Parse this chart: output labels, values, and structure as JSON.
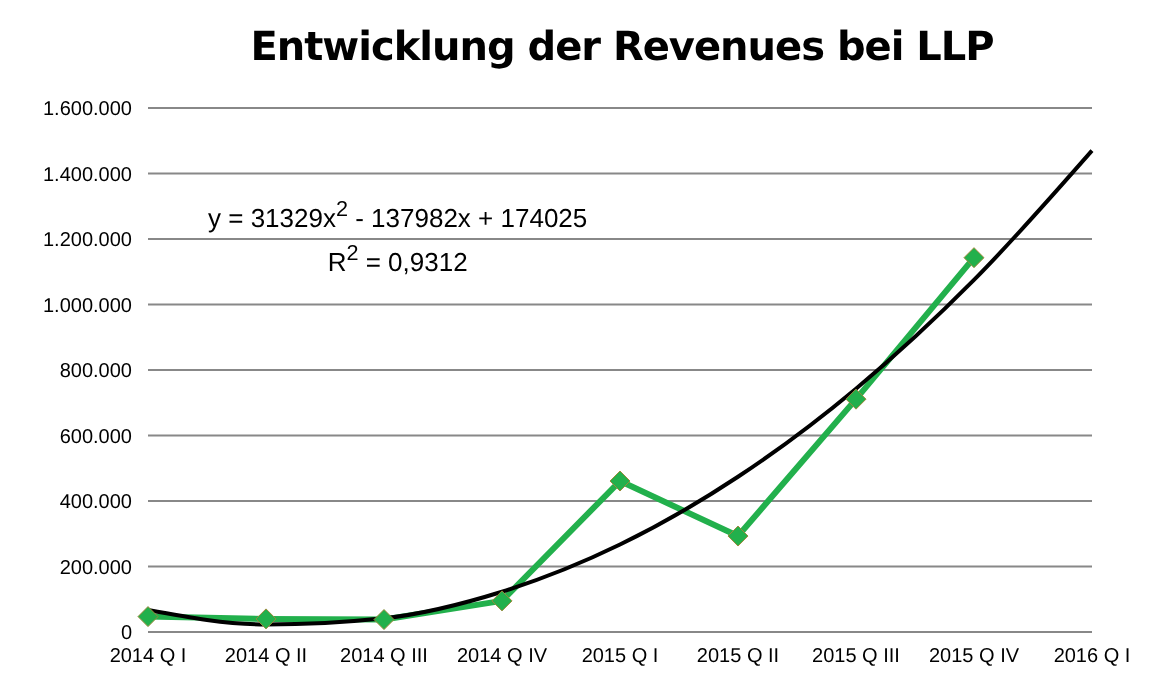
{
  "chart_data": {
    "type": "line",
    "title": "Entwicklung der Revenues bei LLP",
    "categories": [
      "2014 Q I",
      "2014 Q II",
      "2014 Q III",
      "2014 Q IV",
      "2015 Q I",
      "2015 Q II",
      "2015 Q III",
      "2015 Q IV",
      "2016 Q I"
    ],
    "series": [
      {
        "type": "line",
        "color": "#22b04c",
        "marker": "diamond",
        "line_style": "solid",
        "values": [
          47000,
          40000,
          38000,
          95000,
          461000,
          293000,
          711000,
          1143000,
          null
        ]
      },
      {
        "type": "line",
        "color": "#000000",
        "marker": "none",
        "line_style": "solid",
        "values": [
          67000,
          23000,
          42000,
          123000,
          267000,
          474000,
          743000,
          1075000,
          1470000
        ]
      }
    ],
    "ylim": [
      0,
      1600000
    ],
    "yticks": [
      {
        "value": 0,
        "label": "0"
      },
      {
        "value": 200000,
        "label": "200.000"
      },
      {
        "value": 400000,
        "label": "400.000"
      },
      {
        "value": 600000,
        "label": "600.000"
      },
      {
        "value": 800000,
        "label": "800.000"
      },
      {
        "value": 1000000,
        "label": "1.000.000"
      },
      {
        "value": 1200000,
        "label": "1.200.000"
      },
      {
        "value": 1400000,
        "label": "1.400.000"
      },
      {
        "value": 1600000,
        "label": "1.600.000"
      }
    ],
    "grid": "y",
    "legend": false,
    "annotations": [
      "y = 31329x$^{2}$ - 137982x + 174025",
      "R$^{2}$ = 0,9312"
    ]
  }
}
